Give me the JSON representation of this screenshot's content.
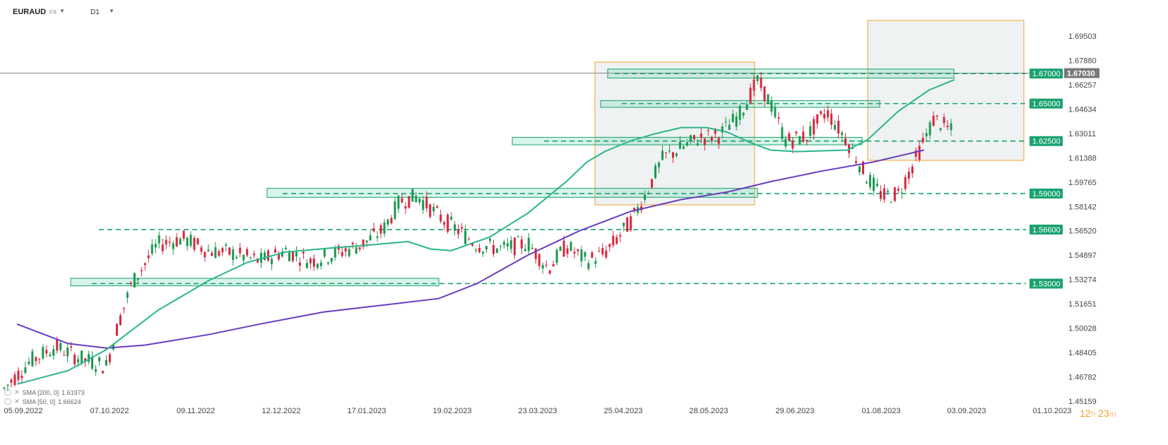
{
  "header": {
    "symbol": "EURAUD",
    "symbol_type": "FX",
    "timeframe": "D1"
  },
  "indicators": [
    {
      "label": "SMA [200, 0]",
      "value": "1.61973",
      "color": "#6a3dbf"
    },
    {
      "label": "SMA [50, 0]",
      "value": "1.66624",
      "color": "#2bb58a"
    }
  ],
  "countdown": {
    "hours": "12",
    "h_unit": "h",
    "minutes": "23",
    "m_unit": "m"
  },
  "colors": {
    "bull": "#1a9850",
    "bear": "#d7263d",
    "level": "#1aa26f",
    "sma50": "#2bb58a",
    "sma200": "#6a3dbf",
    "box": "#f0a030"
  },
  "chart_data": {
    "type": "candlestick",
    "symbol": "EURAUD",
    "timeframe": "D1",
    "y_ticks": [
      "1.69503",
      "1.67880",
      "1.66257",
      "1.64634",
      "1.63011",
      "1.61388",
      "1.59765",
      "1.58142",
      "1.56520",
      "1.54897",
      "1.53274",
      "1.51651",
      "1.50028",
      "1.48405",
      "1.46782",
      "1.45159"
    ],
    "x_ticks": [
      "05.09.2022",
      "07.10.2022",
      "09.11.2022",
      "12.12.2022",
      "17.01.2023",
      "19.02.2023",
      "23.03.2023",
      "25.04.2023",
      "28.05.2023",
      "29.06.2023",
      "01.08.2023",
      "03.09.2023",
      "01.10.2023"
    ],
    "last_price": "1.67030",
    "levels": [
      {
        "label": "1.67000",
        "value": 1.67
      },
      {
        "label": "1.65000",
        "value": 1.65
      },
      {
        "label": "1.62500",
        "value": 1.625
      },
      {
        "label": "1.59000",
        "value": 1.59
      },
      {
        "label": "1.56600",
        "value": 1.566
      },
      {
        "label": "1.53000",
        "value": 1.53
      }
    ],
    "sma50": [
      [
        5,
        1.463
      ],
      [
        25,
        1.472
      ],
      [
        40,
        1.486
      ],
      [
        60,
        1.512
      ],
      [
        80,
        1.532
      ],
      [
        95,
        1.544
      ],
      [
        110,
        1.551
      ],
      [
        130,
        1.554
      ],
      [
        145,
        1.556
      ],
      [
        158,
        1.558
      ],
      [
        167,
        1.553
      ],
      [
        175,
        1.552
      ],
      [
        190,
        1.561
      ],
      [
        205,
        1.577
      ],
      [
        220,
        1.598
      ],
      [
        228,
        1.611
      ],
      [
        235,
        1.618
      ],
      [
        245,
        1.625
      ],
      [
        255,
        1.63
      ],
      [
        265,
        1.634
      ],
      [
        275,
        1.634
      ],
      [
        283,
        1.631
      ],
      [
        292,
        1.624
      ],
      [
        300,
        1.619
      ],
      [
        310,
        1.618
      ],
      [
        330,
        1.619
      ],
      [
        338,
        1.626
      ],
      [
        350,
        1.645
      ],
      [
        362,
        1.659
      ],
      [
        372,
        1.666
      ]
    ],
    "sma200": [
      [
        5,
        1.503
      ],
      [
        25,
        1.49
      ],
      [
        40,
        1.487
      ],
      [
        55,
        1.489
      ],
      [
        80,
        1.496
      ],
      [
        100,
        1.503
      ],
      [
        125,
        1.511
      ],
      [
        150,
        1.516
      ],
      [
        170,
        1.52
      ],
      [
        185,
        1.53
      ],
      [
        205,
        1.549
      ],
      [
        225,
        1.565
      ],
      [
        245,
        1.578
      ],
      [
        265,
        1.586
      ],
      [
        283,
        1.591
      ],
      [
        300,
        1.598
      ],
      [
        320,
        1.605
      ],
      [
        340,
        1.611
      ],
      [
        360,
        1.619
      ]
    ]
  }
}
